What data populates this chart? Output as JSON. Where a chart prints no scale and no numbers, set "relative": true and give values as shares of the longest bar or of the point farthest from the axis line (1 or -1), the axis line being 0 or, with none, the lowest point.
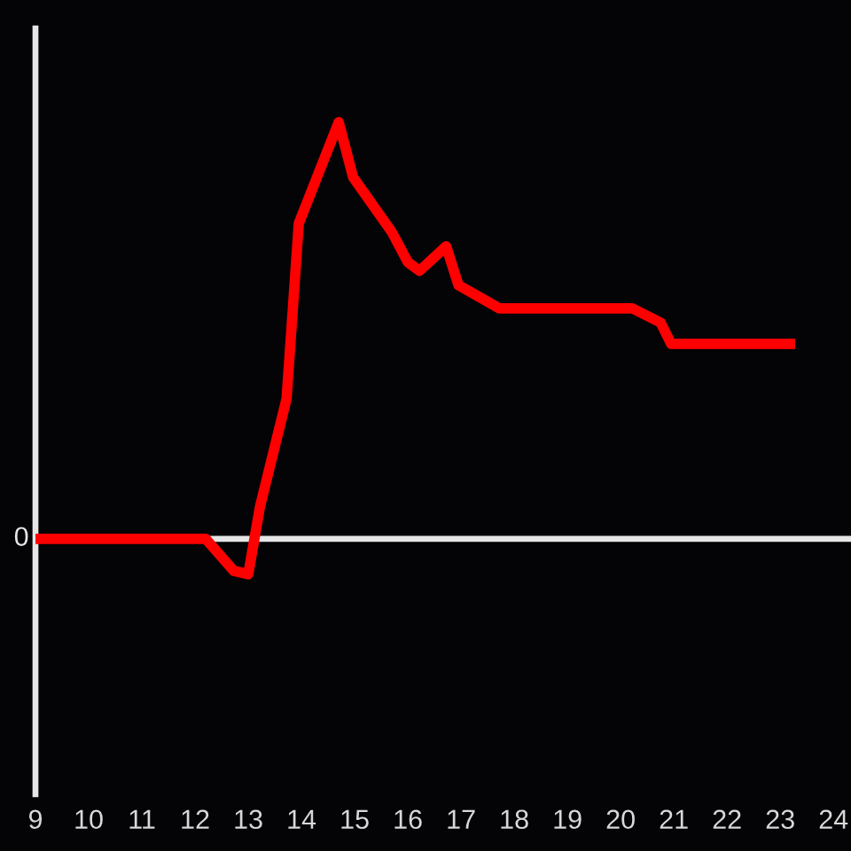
{
  "chart_data": {
    "type": "line",
    "relative": true,
    "xlim": [
      9,
      24.33
    ],
    "xticks": [
      9,
      10,
      11,
      12,
      13,
      14,
      15,
      16,
      17,
      18,
      19,
      20,
      21,
      22,
      23,
      24
    ],
    "series": [
      {
        "color": "#ff0000",
        "x": [
          9,
          12.2,
          12.73,
          13.0,
          13.22,
          13.72,
          13.95,
          14.7,
          14.97,
          15.7,
          16.0,
          16.22,
          16.72,
          16.95,
          17.72,
          20.22,
          20.75,
          20.95,
          23.28
        ],
        "values": [
          0,
          0,
          -0.077,
          -0.085,
          0.077,
          0.336,
          0.757,
          1.0,
          0.868,
          0.736,
          0.664,
          0.643,
          0.702,
          0.609,
          0.553,
          0.553,
          0.519,
          0.468,
          0.468
        ]
      }
    ],
    "ref_lines": [
      {
        "axis": "y",
        "value": 0,
        "label": "0",
        "color": "#e6e6e6"
      }
    ],
    "tick_labels": "x",
    "grid": false,
    "marker": "none",
    "line_style": "solid"
  }
}
